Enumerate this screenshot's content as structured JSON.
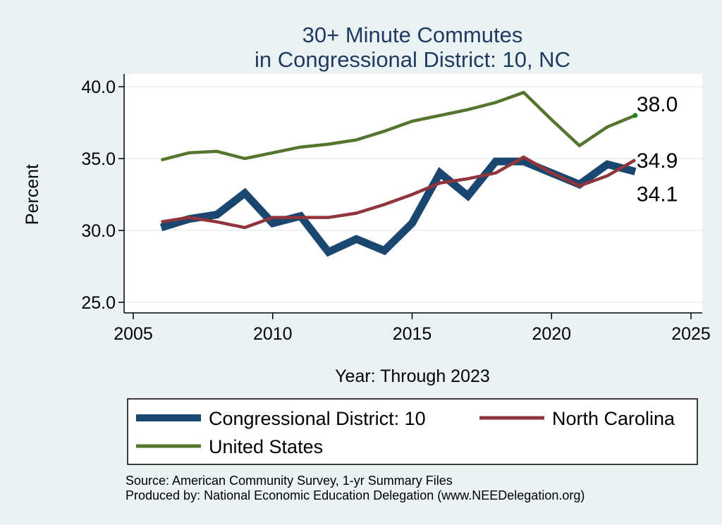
{
  "chart_data": {
    "type": "line",
    "title": [
      "30+ Minute Commutes",
      "in Congressional District:  10, NC"
    ],
    "xlabel": "Year: Through 2023",
    "ylabel": "Percent",
    "xlim": [
      2005,
      2025
    ],
    "ylim": [
      25,
      40
    ],
    "xticks": [
      {
        "value": 2005,
        "label": "2005"
      },
      {
        "value": 2010,
        "label": "2010"
      },
      {
        "value": 2015,
        "label": "2015"
      },
      {
        "value": 2020,
        "label": "2020"
      },
      {
        "value": 2025,
        "label": "2025"
      }
    ],
    "yticks": [
      {
        "value": 25,
        "label": "25.0"
      },
      {
        "value": 30,
        "label": "30.0"
      },
      {
        "value": 35,
        "label": "35.0"
      },
      {
        "value": 40,
        "label": "40.0"
      }
    ],
    "x": [
      2006,
      2007,
      2008,
      2009,
      2010,
      2011,
      2012,
      2013,
      2014,
      2015,
      2016,
      2017,
      2018,
      2019,
      2020,
      2021,
      2022,
      2023
    ],
    "series": [
      {
        "name": "Congressional District:  10",
        "color": "#1a476f",
        "values": [
          30.2,
          30.8,
          31.1,
          32.6,
          30.5,
          31.0,
          28.5,
          29.4,
          28.6,
          30.5,
          34.0,
          32.4,
          34.8,
          34.8,
          34.0,
          33.2,
          34.6,
          34.1
        ],
        "end_label": "34.1"
      },
      {
        "name": "North Carolina",
        "color": "#90353b",
        "values": [
          30.6,
          30.9,
          30.6,
          30.2,
          30.9,
          30.9,
          30.9,
          31.2,
          31.8,
          32.5,
          33.3,
          33.6,
          34.0,
          35.1,
          34.0,
          33.1,
          33.8,
          34.9
        ],
        "end_label": "34.9"
      },
      {
        "name": "United States",
        "color": "#55752f",
        "values": [
          34.9,
          35.4,
          35.5,
          35.0,
          35.4,
          35.8,
          36.0,
          36.3,
          36.9,
          37.6,
          38.0,
          38.4,
          38.9,
          39.6,
          37.7,
          35.9,
          37.2,
          38.0
        ],
        "end_label": "38.0"
      }
    ],
    "legend": {
      "placement": "bottom",
      "items": [
        "Congressional District:  10",
        "North Carolina",
        "United States"
      ]
    }
  },
  "notes": {
    "source": "Source: American Community Survey, 1-yr Summary Files",
    "produced_by": "Produced by: National Economic Education Delegation (www.NEEDelegation.org)"
  }
}
